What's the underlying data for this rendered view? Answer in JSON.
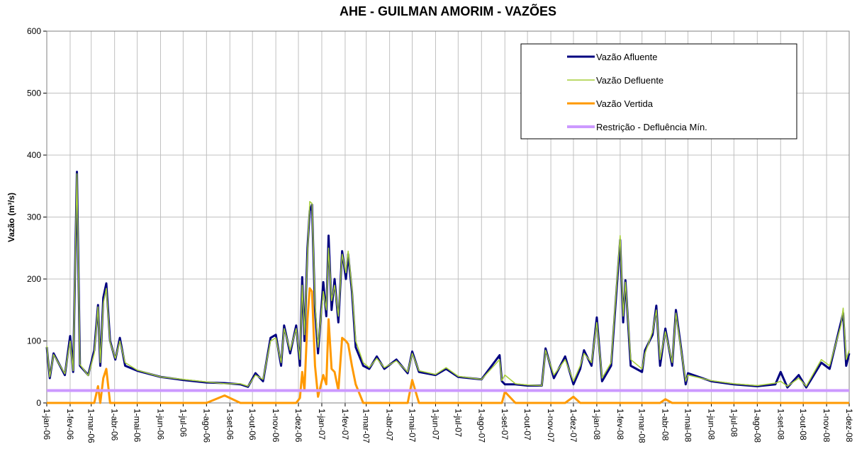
{
  "chart_data": {
    "type": "line",
    "title": "AHE - GUILMAN AMORIM - VAZÕES",
    "y_label": "Vazão (m³/s)",
    "legend": "upper right",
    "grid": true,
    "ylim": [
      0,
      600
    ],
    "yticks": [
      0,
      100,
      200,
      300,
      400,
      500,
      600
    ],
    "xlim": [
      "2006-01-01",
      "2008-12-01"
    ],
    "xticks": [
      {
        "value": "2006-01-01",
        "label": "1-jan-06"
      },
      {
        "value": "2006-02-01",
        "label": "1-fev-06"
      },
      {
        "value": "2006-03-01",
        "label": "1-mar-06"
      },
      {
        "value": "2006-04-01",
        "label": "1-abr-06"
      },
      {
        "value": "2006-05-01",
        "label": "1-mai-06"
      },
      {
        "value": "2006-06-01",
        "label": "1-jun-06"
      },
      {
        "value": "2006-07-01",
        "label": "1-jul-06"
      },
      {
        "value": "2006-08-01",
        "label": "1-ago-06"
      },
      {
        "value": "2006-09-01",
        "label": "1-set-06"
      },
      {
        "value": "2006-10-01",
        "label": "1-out-06"
      },
      {
        "value": "2006-11-01",
        "label": "1-nov-06"
      },
      {
        "value": "2006-12-01",
        "label": "1-dez-06"
      },
      {
        "value": "2007-01-01",
        "label": "1-jan-07"
      },
      {
        "value": "2007-02-01",
        "label": "1-fev-07"
      },
      {
        "value": "2007-03-01",
        "label": "1-mar-07"
      },
      {
        "value": "2007-04-01",
        "label": "1-abr-07"
      },
      {
        "value": "2007-05-01",
        "label": "1-mai-07"
      },
      {
        "value": "2007-06-01",
        "label": "1-jun-07"
      },
      {
        "value": "2007-07-01",
        "label": "1-jul-07"
      },
      {
        "value": "2007-08-01",
        "label": "1-ago-07"
      },
      {
        "value": "2007-09-01",
        "label": "1-set-07"
      },
      {
        "value": "2007-10-01",
        "label": "1-out-07"
      },
      {
        "value": "2007-11-01",
        "label": "1-nov-07"
      },
      {
        "value": "2007-12-01",
        "label": "1-dez-07"
      },
      {
        "value": "2008-01-01",
        "label": "1-jan-08"
      },
      {
        "value": "2008-02-01",
        "label": "1-fev-08"
      },
      {
        "value": "2008-03-01",
        "label": "1-mar-08"
      },
      {
        "value": "2008-04-01",
        "label": "1-abr-08"
      },
      {
        "value": "2008-05-01",
        "label": "1-mai-08"
      },
      {
        "value": "2008-06-01",
        "label": "1-jun-08"
      },
      {
        "value": "2008-07-01",
        "label": "1-jul-08"
      },
      {
        "value": "2008-08-01",
        "label": "1-ago-08"
      },
      {
        "value": "2008-09-01",
        "label": "1-set-08"
      },
      {
        "value": "2008-10-01",
        "label": "1-out-08"
      },
      {
        "value": "2008-11-01",
        "label": "1-nov-08"
      },
      {
        "value": "2008-12-01",
        "label": "1-dez-08"
      }
    ],
    "x": [
      "2006-01-01",
      "2006-01-05",
      "2006-01-10",
      "2006-01-25",
      "2006-02-01",
      "2006-02-05",
      "2006-02-10",
      "2006-02-14",
      "2006-02-25",
      "2006-03-05",
      "2006-03-10",
      "2006-03-13",
      "2006-03-17",
      "2006-03-21",
      "2006-03-26",
      "2006-04-02",
      "2006-04-08",
      "2006-04-15",
      "2006-05-01",
      "2006-06-01",
      "2006-07-01",
      "2006-08-01",
      "2006-08-25",
      "2006-09-15",
      "2006-09-25",
      "2006-10-05",
      "2006-10-15",
      "2006-10-25",
      "2006-11-01",
      "2006-11-08",
      "2006-11-12",
      "2006-11-20",
      "2006-11-28",
      "2006-12-03",
      "2006-12-06",
      "2006-12-09",
      "2006-12-13",
      "2006-12-16",
      "2006-12-19",
      "2006-12-23",
      "2006-12-27",
      "2007-01-03",
      "2007-01-07",
      "2007-01-10",
      "2007-01-14",
      "2007-01-18",
      "2007-01-23",
      "2007-01-28",
      "2007-02-02",
      "2007-02-05",
      "2007-02-10",
      "2007-02-15",
      "2007-02-25",
      "2007-03-05",
      "2007-03-15",
      "2007-03-25",
      "2007-04-10",
      "2007-04-25",
      "2007-05-01",
      "2007-05-10",
      "2007-06-01",
      "2007-06-15",
      "2007-07-01",
      "2007-08-01",
      "2007-08-25",
      "2007-08-28",
      "2007-09-01",
      "2007-09-15",
      "2007-10-01",
      "2007-10-20",
      "2007-10-25",
      "2007-11-05",
      "2007-11-20",
      "2007-12-01",
      "2007-12-10",
      "2007-12-15",
      "2007-12-25",
      "2008-01-01",
      "2008-01-08",
      "2008-01-20",
      "2008-02-01",
      "2008-02-05",
      "2008-02-08",
      "2008-02-15",
      "2008-03-01",
      "2008-03-05",
      "2008-03-15",
      "2008-03-20",
      "2008-03-25",
      "2008-04-01",
      "2008-04-10",
      "2008-04-15",
      "2008-04-22",
      "2008-04-28",
      "2008-05-01",
      "2008-06-01",
      "2008-07-01",
      "2008-08-01",
      "2008-08-25",
      "2008-09-01",
      "2008-09-10",
      "2008-09-25",
      "2008-10-05",
      "2008-10-25",
      "2008-11-05",
      "2008-11-20",
      "2008-11-23",
      "2008-11-27",
      "2008-12-01"
    ],
    "series": [
      {
        "name": "Vazão Afluente",
        "color": "#000080",
        "width": 3,
        "values": [
          90,
          40,
          80,
          45,
          108,
          50,
          373,
          60,
          45,
          85,
          158,
          60,
          170,
          193,
          100,
          70,
          105,
          60,
          52,
          42,
          37,
          33,
          32,
          30,
          26,
          48,
          35,
          105,
          110,
          60,
          125,
          80,
          125,
          60,
          203,
          100,
          250,
          310,
          320,
          150,
          80,
          195,
          140,
          270,
          150,
          200,
          130,
          245,
          200,
          240,
          180,
          90,
          60,
          55,
          75,
          55,
          70,
          48,
          83,
          50,
          45,
          55,
          42,
          38,
          77,
          35,
          30,
          30,
          28,
          28,
          88,
          40,
          75,
          30,
          55,
          85,
          60,
          138,
          35,
          60,
          263,
          130,
          198,
          60,
          50,
          85,
          110,
          157,
          60,
          120,
          60,
          150,
          87,
          30,
          48,
          35,
          30,
          27,
          30,
          50,
          25,
          45,
          25,
          65,
          55,
          130,
          145,
          60,
          80
        ]
      },
      {
        "name": "Vazão Defluente",
        "color": "#a6ce39",
        "width": 1.5,
        "values": [
          92,
          42,
          78,
          47,
          100,
          52,
          370,
          62,
          44,
          80,
          155,
          65,
          160,
          185,
          98,
          72,
          100,
          65,
          53,
          42,
          38,
          34,
          31,
          31,
          27,
          45,
          38,
          100,
          105,
          65,
          120,
          85,
          120,
          70,
          190,
          110,
          240,
          325,
          322,
          160,
          90,
          180,
          150,
          250,
          165,
          190,
          140,
          240,
          210,
          245,
          185,
          100,
          65,
          57,
          72,
          57,
          68,
          50,
          80,
          52,
          46,
          57,
          43,
          38,
          70,
          36,
          45,
          31,
          29,
          28,
          85,
          45,
          70,
          35,
          60,
          80,
          65,
          130,
          40,
          65,
          270,
          140,
          195,
          70,
          55,
          80,
          115,
          150,
          70,
          115,
          65,
          145,
          85,
          35,
          45,
          36,
          31,
          28,
          32,
          35,
          27,
          40,
          27,
          70,
          60,
          125,
          153,
          70,
          85
        ]
      },
      {
        "name": "Vazão Vertida",
        "color": "#ff9900",
        "width": 3,
        "values": [
          0,
          0,
          0,
          0,
          0,
          0,
          0,
          0,
          0,
          0,
          27,
          0,
          40,
          55,
          0,
          0,
          0,
          0,
          0,
          0,
          0,
          0,
          12,
          0,
          0,
          0,
          0,
          0,
          0,
          0,
          0,
          0,
          0,
          8,
          50,
          20,
          135,
          185,
          180,
          60,
          10,
          45,
          30,
          135,
          55,
          50,
          20,
          105,
          100,
          95,
          60,
          30,
          0,
          0,
          0,
          0,
          0,
          0,
          37,
          0,
          0,
          0,
          0,
          0,
          0,
          0,
          18,
          0,
          0,
          0,
          0,
          0,
          0,
          10,
          0,
          0,
          0,
          0,
          0,
          0,
          0,
          0,
          0,
          0,
          0,
          0,
          0,
          0,
          0,
          6,
          0,
          0,
          0,
          0,
          0,
          0,
          0,
          0,
          0,
          0,
          0,
          0,
          0,
          0,
          0,
          0,
          0,
          0,
          0
        ]
      },
      {
        "name": "Restrição - Defluência Mín.",
        "color": "#cc99ff",
        "width": 4,
        "x": [
          "2006-01-01",
          "2008-12-01"
        ],
        "values": [
          20,
          20
        ]
      }
    ]
  }
}
